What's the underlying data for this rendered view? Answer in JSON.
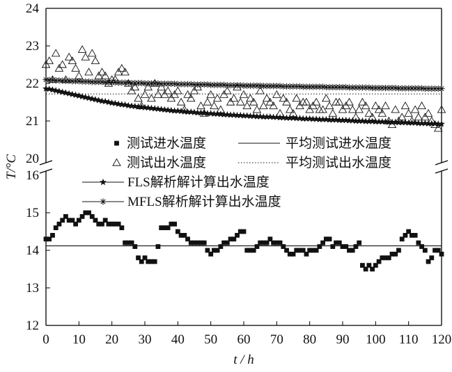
{
  "chart_data": {
    "type": "scatter",
    "xlabel": "t / h",
    "ylabel": "T/°C",
    "xlim": [
      0,
      120
    ],
    "x_ticks": [
      0,
      10,
      20,
      30,
      40,
      50,
      60,
      70,
      80,
      90,
      100,
      110,
      120
    ],
    "axis_break": {
      "lower_range": [
        12,
        16
      ],
      "upper_range": [
        20,
        24
      ]
    },
    "y_ticks_upper": [
      20,
      21,
      22,
      23,
      24
    ],
    "y_ticks_lower": [
      12,
      13,
      14,
      15,
      16
    ],
    "grid": false,
    "legend_position": "center-left",
    "legend": [
      {
        "label": "测试进水温度",
        "marker": "filled-square"
      },
      {
        "label": "平均测试进水温度",
        "marker": "solid-line"
      },
      {
        "label": "测试出水温度",
        "marker": "open-triangle"
      },
      {
        "label": "平均测试出水温度",
        "marker": "dotted-line"
      },
      {
        "label": "FLS解析解计算出水温度",
        "marker": "filled-star"
      },
      {
        "label": "MFLS解析解计算出水温度",
        "marker": "asterisk"
      }
    ],
    "series": [
      {
        "name": "测试进水温度",
        "marker": "filled-square",
        "x": [
          0,
          1,
          2,
          3,
          4,
          5,
          6,
          7,
          8,
          9,
          10,
          11,
          12,
          13,
          14,
          15,
          16,
          17,
          18,
          19,
          20,
          21,
          22,
          23,
          24,
          25,
          26,
          27,
          28,
          29,
          30,
          31,
          32,
          33,
          34,
          35,
          36,
          37,
          38,
          39,
          40,
          41,
          42,
          43,
          44,
          45,
          46,
          47,
          48,
          49,
          50,
          51,
          52,
          53,
          54,
          55,
          56,
          57,
          58,
          59,
          60,
          61,
          62,
          63,
          64,
          65,
          66,
          67,
          68,
          69,
          70,
          71,
          72,
          73,
          74,
          75,
          76,
          77,
          78,
          79,
          80,
          81,
          82,
          83,
          84,
          85,
          86,
          87,
          88,
          89,
          90,
          91,
          92,
          93,
          94,
          95,
          96,
          97,
          98,
          99,
          100,
          101,
          102,
          103,
          104,
          105,
          106,
          107,
          108,
          109,
          110,
          111,
          112,
          113,
          114,
          115,
          116,
          117,
          118,
          119,
          120
        ],
        "y": [
          14.3,
          14.3,
          14.4,
          14.6,
          14.7,
          14.8,
          14.9,
          14.8,
          14.8,
          14.7,
          14.8,
          14.9,
          15.0,
          15.0,
          14.9,
          14.8,
          14.7,
          14.7,
          14.8,
          14.7,
          14.7,
          14.7,
          14.7,
          14.6,
          14.2,
          14.2,
          14.2,
          14.1,
          13.8,
          13.7,
          13.8,
          13.7,
          13.7,
          13.7,
          14.1,
          14.6,
          14.6,
          14.6,
          14.7,
          14.7,
          14.5,
          14.4,
          14.4,
          14.3,
          14.2,
          14.2,
          14.2,
          14.2,
          14.2,
          14.0,
          13.9,
          14.0,
          14.0,
          14.1,
          14.2,
          14.2,
          14.3,
          14.3,
          14.4,
          14.5,
          14.5,
          14.0,
          14.0,
          14.0,
          14.1,
          14.2,
          14.2,
          14.2,
          14.3,
          14.2,
          14.2,
          14.2,
          14.1,
          14.0,
          13.9,
          13.9,
          14.0,
          14.0,
          14.0,
          13.9,
          14.0,
          14.0,
          14.0,
          14.1,
          14.2,
          14.3,
          14.3,
          14.1,
          14.2,
          14.2,
          14.1,
          14.1,
          14.0,
          14.0,
          14.1,
          14.2,
          13.6,
          13.5,
          13.6,
          13.5,
          13.6,
          13.7,
          13.8,
          13.8,
          13.8,
          13.9,
          13.9,
          14.0,
          14.3,
          14.4,
          14.5,
          14.4,
          14.4,
          14.2,
          14.1,
          14.0,
          13.7,
          13.8,
          14.0,
          14.0,
          13.9
        ]
      },
      {
        "name": "平均测试进水温度",
        "marker": "solid-line",
        "x": [
          0,
          120
        ],
        "y": [
          14.12,
          14.12
        ]
      },
      {
        "name": "测试出水温度",
        "marker": "open-triangle",
        "x": [
          0,
          1,
          2,
          3,
          4,
          5,
          6,
          7,
          8,
          9,
          10,
          11,
          12,
          13,
          14,
          15,
          16,
          17,
          18,
          19,
          20,
          21,
          22,
          23,
          24,
          25,
          26,
          27,
          28,
          29,
          30,
          31,
          32,
          33,
          34,
          35,
          36,
          37,
          38,
          39,
          40,
          41,
          42,
          43,
          44,
          45,
          46,
          47,
          48,
          49,
          50,
          51,
          52,
          53,
          54,
          55,
          56,
          57,
          58,
          59,
          60,
          61,
          62,
          63,
          64,
          65,
          66,
          67,
          68,
          69,
          70,
          71,
          72,
          73,
          74,
          75,
          76,
          77,
          78,
          79,
          80,
          81,
          82,
          83,
          84,
          85,
          86,
          87,
          88,
          89,
          90,
          91,
          92,
          93,
          94,
          95,
          96,
          97,
          98,
          99,
          100,
          101,
          102,
          103,
          104,
          105,
          106,
          107,
          108,
          109,
          110,
          111,
          112,
          113,
          114,
          115,
          116,
          117,
          118,
          119,
          120
        ],
        "y": [
          22.5,
          22.6,
          22.1,
          22.8,
          22.4,
          22.5,
          22.1,
          22.7,
          22.6,
          22.4,
          22.2,
          22.9,
          22.7,
          22.3,
          22.8,
          22.6,
          22.2,
          22.3,
          22.2,
          22.0,
          22.1,
          22.1,
          22.3,
          22.4,
          22.3,
          22.0,
          21.8,
          21.9,
          21.6,
          21.4,
          21.7,
          21.9,
          21.6,
          22.0,
          21.7,
          21.9,
          21.7,
          21.8,
          21.6,
          21.7,
          21.8,
          21.5,
          21.3,
          21.7,
          21.6,
          21.8,
          21.9,
          21.4,
          21.2,
          21.5,
          21.7,
          21.4,
          21.6,
          21.3,
          21.7,
          21.8,
          21.5,
          21.6,
          21.9,
          21.5,
          21.7,
          21.4,
          21.6,
          21.5,
          21.3,
          21.8,
          21.4,
          21.6,
          21.5,
          21.4,
          21.7,
          21.2,
          21.6,
          21.5,
          21.3,
          21.2,
          21.6,
          21.4,
          21.5,
          21.5,
          21.3,
          21.4,
          21.5,
          21.3,
          21.3,
          21.6,
          21.4,
          21.2,
          21.5,
          21.5,
          21.3,
          21.4,
          21.5,
          21.3,
          21.1,
          21.3,
          21.5,
          21.4,
          21.2,
          21.1,
          21.4,
          21.3,
          21.2,
          21.4,
          21.0,
          20.9,
          21.3,
          21.0,
          21.1,
          21.4,
          21.2,
          21.0,
          21.3,
          21.1,
          21.4,
          21.1,
          21.2,
          21.0,
          20.9,
          20.8,
          21.3
        ]
      },
      {
        "name": "平均测试出水温度",
        "marker": "dotted-line",
        "x": [
          0,
          120
        ],
        "y": [
          21.72,
          21.72
        ]
      },
      {
        "name": "FLS解析解计算出水温度",
        "marker": "filled-star",
        "x": [
          0,
          1,
          2,
          3,
          4,
          5,
          6,
          7,
          8,
          9,
          10,
          11,
          12,
          13,
          14,
          15,
          16,
          17,
          18,
          19,
          20,
          21,
          22,
          23,
          24,
          25,
          26,
          27,
          28,
          29,
          30,
          31,
          32,
          33,
          34,
          35,
          36,
          37,
          38,
          39,
          40,
          41,
          42,
          43,
          44,
          45,
          46,
          47,
          48,
          49,
          50,
          51,
          52,
          53,
          54,
          55,
          56,
          57,
          58,
          59,
          60,
          61,
          62,
          63,
          64,
          65,
          66,
          67,
          68,
          69,
          70,
          71,
          72,
          73,
          74,
          75,
          76,
          77,
          78,
          79,
          80,
          81,
          82,
          83,
          84,
          85,
          86,
          87,
          88,
          89,
          90,
          91,
          92,
          93,
          94,
          95,
          96,
          97,
          98,
          99,
          100,
          101,
          102,
          103,
          104,
          105,
          106,
          107,
          108,
          109,
          110,
          111,
          112,
          113,
          114,
          115,
          116,
          117,
          118,
          119,
          120
        ],
        "y": [
          21.86,
          21.85,
          21.83,
          21.81,
          21.79,
          21.77,
          21.75,
          21.73,
          21.71,
          21.69,
          21.67,
          21.65,
          21.63,
          21.61,
          21.59,
          21.57,
          21.55,
          21.53,
          21.52,
          21.5,
          21.48,
          21.47,
          21.45,
          21.44,
          21.43,
          21.41,
          21.4,
          21.39,
          21.38,
          21.37,
          21.36,
          21.35,
          21.34,
          21.33,
          21.32,
          21.31,
          21.3,
          21.29,
          21.28,
          21.27,
          21.27,
          21.26,
          21.25,
          21.24,
          21.24,
          21.23,
          21.22,
          21.22,
          21.21,
          21.2,
          21.2,
          21.19,
          21.19,
          21.18,
          21.17,
          21.17,
          21.16,
          21.16,
          21.15,
          21.15,
          21.14,
          21.14,
          21.13,
          21.13,
          21.12,
          21.12,
          21.11,
          21.11,
          21.11,
          21.1,
          21.1,
          21.09,
          21.09,
          21.08,
          21.08,
          21.08,
          21.07,
          21.07,
          21.06,
          21.06,
          21.06,
          21.05,
          21.05,
          21.04,
          21.04,
          21.04,
          21.03,
          21.03,
          21.03,
          21.02,
          21.02,
          21.02,
          21.01,
          21.01,
          21.0,
          21.0,
          21.0,
          20.99,
          20.99,
          20.99,
          20.98,
          20.98,
          20.98,
          20.98,
          20.97,
          20.97,
          20.97,
          20.96,
          20.96,
          20.96,
          20.95,
          20.95,
          20.95,
          20.94,
          20.94,
          20.94,
          20.93,
          20.93,
          20.93,
          20.92,
          20.92
        ]
      },
      {
        "name": "MFLS解析解计算出水温度",
        "marker": "asterisk",
        "x": [
          0,
          1,
          2,
          3,
          4,
          5,
          6,
          7,
          8,
          9,
          10,
          11,
          12,
          13,
          14,
          15,
          16,
          17,
          18,
          19,
          20,
          21,
          22,
          23,
          24,
          25,
          26,
          27,
          28,
          29,
          30,
          31,
          32,
          33,
          34,
          35,
          36,
          37,
          38,
          39,
          40,
          41,
          42,
          43,
          44,
          45,
          46,
          47,
          48,
          49,
          50,
          51,
          52,
          53,
          54,
          55,
          56,
          57,
          58,
          59,
          60,
          61,
          62,
          63,
          64,
          65,
          66,
          67,
          68,
          69,
          70,
          71,
          72,
          73,
          74,
          75,
          76,
          77,
          78,
          79,
          80,
          81,
          82,
          83,
          84,
          85,
          86,
          87,
          88,
          89,
          90,
          91,
          92,
          93,
          94,
          95,
          96,
          97,
          98,
          99,
          100,
          101,
          102,
          103,
          104,
          105,
          106,
          107,
          108,
          109,
          110,
          111,
          112,
          113,
          114,
          115,
          116,
          117,
          118,
          119,
          120
        ],
        "y": [
          22.1,
          22.09,
          22.09,
          22.08,
          22.08,
          22.07,
          22.07,
          22.07,
          22.06,
          22.06,
          22.06,
          22.05,
          22.05,
          22.05,
          22.04,
          22.04,
          22.04,
          22.04,
          22.03,
          22.03,
          22.03,
          22.03,
          22.02,
          22.02,
          22.02,
          22.02,
          22.01,
          22.01,
          22.01,
          22.01,
          22.0,
          22.0,
          22.0,
          22.0,
          22.0,
          21.99,
          21.99,
          21.99,
          21.99,
          21.99,
          21.98,
          21.98,
          21.98,
          21.98,
          21.98,
          21.97,
          21.97,
          21.97,
          21.97,
          21.97,
          21.96,
          21.96,
          21.96,
          21.96,
          21.96,
          21.95,
          21.95,
          21.95,
          21.95,
          21.95,
          21.94,
          21.94,
          21.94,
          21.94,
          21.94,
          21.94,
          21.93,
          21.93,
          21.93,
          21.93,
          21.93,
          21.93,
          21.92,
          21.92,
          21.92,
          21.92,
          21.92,
          21.92,
          21.91,
          21.91,
          21.91,
          21.91,
          21.91,
          21.91,
          21.91,
          21.9,
          21.9,
          21.9,
          21.9,
          21.9,
          21.9,
          21.9,
          21.89,
          21.89,
          21.89,
          21.89,
          21.89,
          21.89,
          21.89,
          21.88,
          21.88,
          21.88,
          21.88,
          21.88,
          21.88,
          21.88,
          21.88,
          21.87,
          21.87,
          21.87,
          21.87,
          21.87,
          21.87,
          21.87,
          21.87,
          21.86,
          21.86,
          21.86,
          21.86,
          21.86,
          21.86
        ]
      }
    ]
  }
}
